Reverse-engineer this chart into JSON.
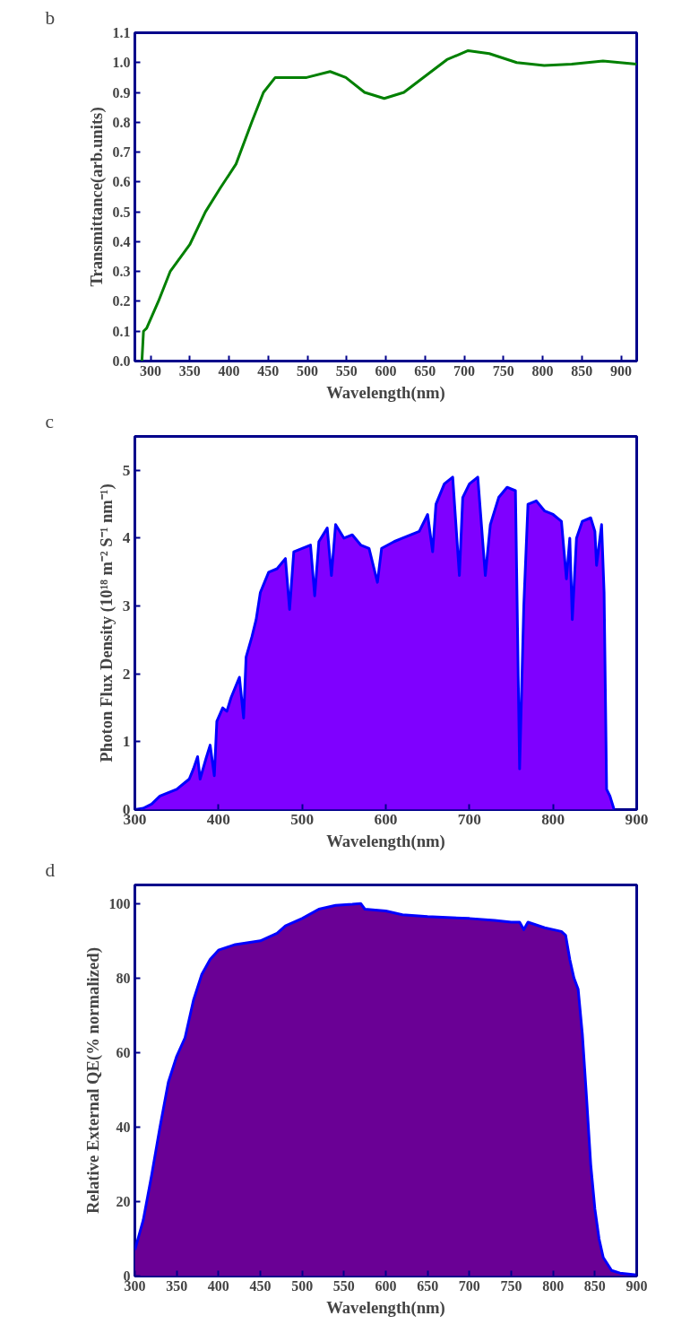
{
  "chart_data": [
    {
      "type": "line",
      "title": "b",
      "xlabel": "Wavelength(nm)",
      "ylabel": "Transmittance(arb.units)",
      "xlim": [
        280,
        920
      ],
      "ylim": [
        0,
        1.1
      ],
      "xticks": [
        300,
        350,
        400,
        450,
        500,
        550,
        600,
        650,
        700,
        750,
        800,
        850,
        900
      ],
      "yticks": [
        {
          "value": 0,
          "label": "0.0"
        },
        0.1,
        0.2,
        0.3,
        0.4,
        0.5,
        0.6,
        0.7,
        0.8,
        0.9,
        {
          "value": 1,
          "label": "1.0"
        },
        1.1
      ],
      "grid": false,
      "series": [
        {
          "color": "#008000",
          "x": [
            289,
            291,
            295,
            310,
            325,
            350,
            370,
            389,
            409,
            429,
            444,
            459,
            499,
            529,
            549,
            573,
            598,
            623,
            658,
            678,
            705,
            732,
            767,
            802,
            837,
            877,
            920
          ],
          "values": [
            0.0,
            0.1,
            0.11,
            0.2,
            0.3,
            0.39,
            0.5,
            0.58,
            0.66,
            0.8,
            0.9,
            0.95,
            0.95,
            0.97,
            0.95,
            0.9,
            0.88,
            0.9,
            0.97,
            1.01,
            1.04,
            1.03,
            1.0,
            0.99,
            0.995,
            1.005,
            0.995
          ]
        }
      ]
    },
    {
      "type": "area",
      "title": "c",
      "xlabel": "Wavelength(nm)",
      "ylabel": "Photon Flux Density (10¹⁸ m⁻² S⁻¹ nm⁻¹)",
      "xlim": [
        300,
        900
      ],
      "ylim": [
        0,
        5.5
      ],
      "xticks": [
        300,
        400,
        500,
        600,
        700,
        800,
        900
      ],
      "yticks": [
        0,
        1,
        2,
        3,
        4,
        5
      ],
      "grid": false,
      "series": [
        {
          "color": "#7f00ff",
          "x": [
            300,
            310,
            320,
            330,
            340,
            350,
            360,
            365,
            370,
            375,
            378,
            385,
            390,
            395,
            398,
            405,
            410,
            415,
            425,
            430,
            433,
            440,
            445,
            450,
            455,
            460,
            470,
            480,
            485,
            490,
            500,
            510,
            515,
            520,
            530,
            535,
            540,
            550,
            560,
            570,
            580,
            590,
            595,
            610,
            620,
            630,
            640,
            650,
            656,
            660,
            670,
            680,
            688,
            692,
            700,
            710,
            719,
            725,
            735,
            745,
            755,
            760,
            765,
            770,
            780,
            790,
            800,
            810,
            816,
            820,
            823,
            828,
            835,
            845,
            850,
            852,
            858,
            861,
            864,
            868,
            873
          ],
          "values": [
            0,
            0.02,
            0.08,
            0.2,
            0.25,
            0.3,
            0.4,
            0.45,
            0.6,
            0.78,
            0.45,
            0.75,
            0.95,
            0.5,
            1.3,
            1.5,
            1.45,
            1.65,
            1.95,
            1.35,
            2.25,
            2.55,
            2.8,
            3.2,
            3.35,
            3.5,
            3.55,
            3.7,
            2.95,
            3.8,
            3.85,
            3.9,
            3.15,
            3.95,
            4.15,
            3.45,
            4.2,
            4.0,
            4.05,
            3.9,
            3.85,
            3.35,
            3.85,
            3.95,
            4.0,
            4.05,
            4.1,
            4.35,
            3.8,
            4.5,
            4.8,
            4.9,
            3.45,
            4.6,
            4.8,
            4.9,
            3.45,
            4.2,
            4.6,
            4.75,
            4.7,
            0.6,
            3.0,
            4.5,
            4.55,
            4.4,
            4.35,
            4.25,
            3.4,
            4.0,
            2.8,
            4.0,
            4.25,
            4.3,
            4.1,
            3.6,
            4.2,
            3.2,
            0.3,
            0.2,
            0
          ]
        }
      ]
    },
    {
      "type": "area",
      "title": "d",
      "xlabel": "Wavelength(nm)",
      "ylabel": "Relative External QE(% normalized)",
      "xlim": [
        300,
        900
      ],
      "ylim": [
        0,
        105
      ],
      "xticks": [
        300,
        350,
        400,
        450,
        500,
        550,
        600,
        650,
        700,
        750,
        800,
        850,
        900
      ],
      "yticks": [
        0,
        20,
        40,
        60,
        80,
        100
      ],
      "grid": false,
      "series": [
        {
          "color": "#6a0095",
          "x": [
            300,
            310,
            320,
            330,
            340,
            350,
            360,
            370,
            380,
            390,
            400,
            420,
            450,
            470,
            480,
            500,
            520,
            540,
            560,
            570,
            575,
            600,
            620,
            650,
            700,
            730,
            750,
            760,
            765,
            770,
            790,
            810,
            815,
            820,
            825,
            830,
            835,
            840,
            845,
            850,
            855,
            860,
            870,
            880,
            900
          ],
          "values": [
            7,
            15,
            27,
            40,
            52,
            59,
            64,
            74,
            81,
            85,
            87.5,
            89,
            90,
            92,
            94,
            96,
            98.5,
            99.5,
            99.8,
            100,
            98.5,
            98,
            97,
            96.5,
            96,
            95.5,
            95,
            95,
            93,
            95,
            93.5,
            92.5,
            91.5,
            85,
            80,
            77,
            65,
            48,
            30,
            18,
            10,
            5,
            1.5,
            0.8,
            0.3
          ]
        }
      ]
    }
  ]
}
